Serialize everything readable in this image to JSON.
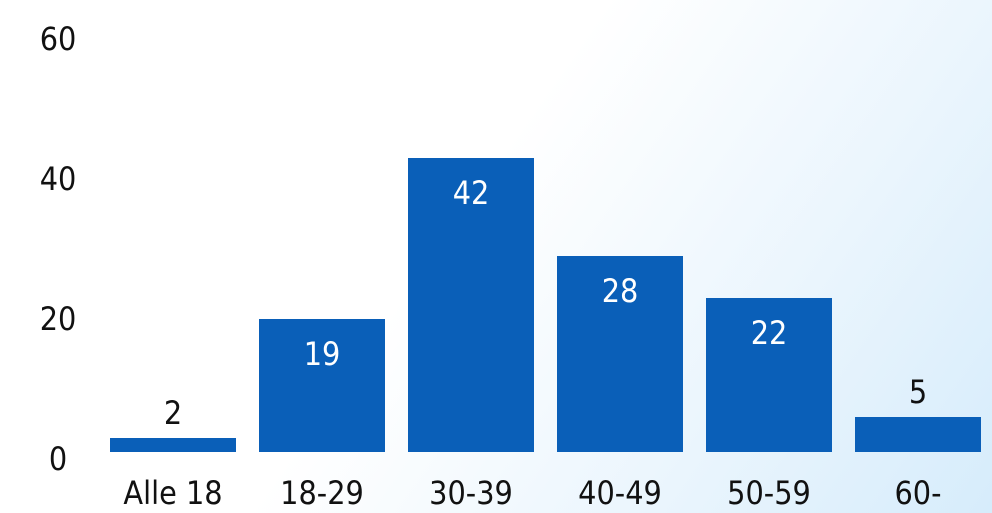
{
  "chart_data": {
    "type": "bar",
    "categories": [
      "Alle 18",
      "18-29",
      "30-39",
      "40-49",
      "50-59",
      "60-"
    ],
    "values": [
      2,
      19,
      42,
      28,
      22,
      5
    ],
    "title": "",
    "xlabel": "",
    "ylabel": "",
    "ylim": [
      0,
      60
    ],
    "yticks": [
      0,
      20,
      40,
      60
    ],
    "grid": false,
    "bar_color": "#0a5fb8",
    "label_inside_color": "#ffffff",
    "label_outside_color": "#111111"
  }
}
